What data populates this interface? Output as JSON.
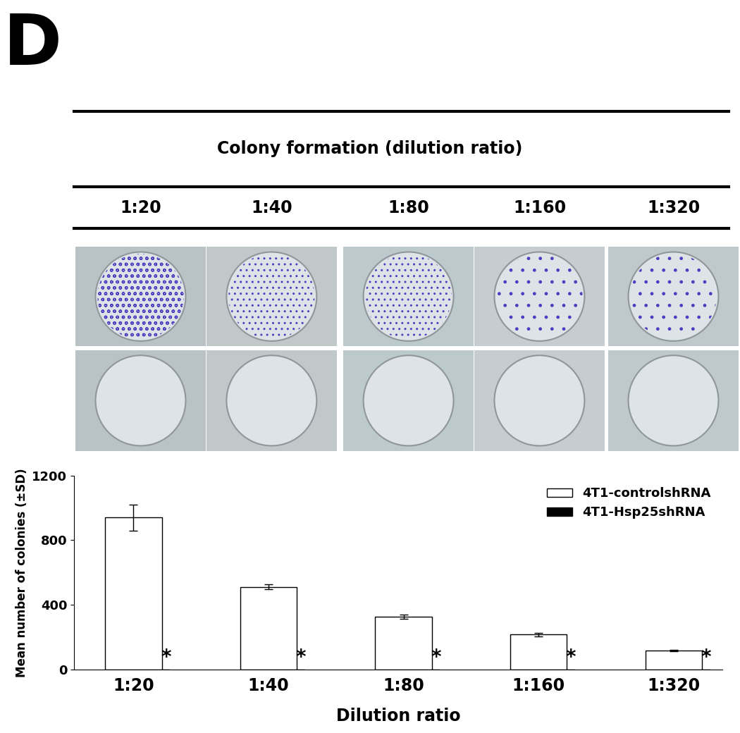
{
  "panel_label": "D",
  "header": {
    "title": "Colony formation (dilution ratio)",
    "columns": [
      "1:20",
      "1:40",
      "1:80",
      "1:160",
      "1:320"
    ]
  },
  "chart_data": {
    "type": "bar",
    "x_label": "Dilution ratio",
    "y_label": "Mean number of colonies (±SD)",
    "categories": [
      "1:20",
      "1:40",
      "1:80",
      "1:160",
      "1:320"
    ],
    "series": [
      {
        "name": "4T1-controlshRNA",
        "color": "#ffffff",
        "values": [
          940,
          510,
          325,
          215,
          115
        ],
        "errors": [
          80,
          15,
          12,
          10,
          5
        ]
      },
      {
        "name": "4T1-Hsp25shRNA",
        "color": "#000000",
        "values": [
          0,
          0,
          0,
          0,
          0
        ],
        "annotations": [
          "*",
          "*",
          "*",
          "*",
          "*"
        ]
      }
    ],
    "ylim": [
      0,
      1200
    ],
    "yticks": [
      0,
      400,
      800,
      1200
    ],
    "legend": "upper right",
    "grid": false
  }
}
